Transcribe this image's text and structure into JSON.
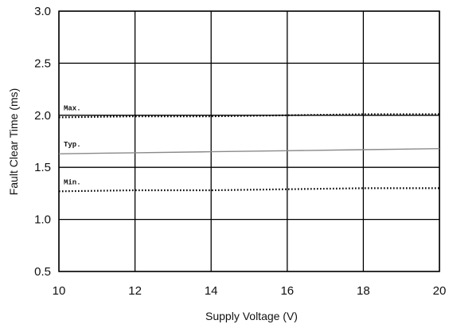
{
  "chart_data": {
    "type": "line",
    "title": "",
    "xlabel": "Supply Voltage (V)",
    "ylabel": "Fault Clear Time (ms)",
    "xlim": [
      10,
      20
    ],
    "ylim": [
      0.5,
      3.0
    ],
    "x_ticks": [
      "10",
      "12",
      "14",
      "16",
      "18",
      "20"
    ],
    "y_ticks": [
      "0.5",
      "1.0",
      "1.5",
      "2.0",
      "2.5",
      "3.0"
    ],
    "grid": true,
    "series": [
      {
        "name": "Max.",
        "style": "dotted",
        "color": "#000000",
        "x": [
          10,
          12,
          14,
          16,
          18,
          20
        ],
        "y": [
          1.98,
          1.99,
          1.99,
          2.0,
          2.01,
          2.01
        ]
      },
      {
        "name": "Typ.",
        "style": "solid",
        "color": "#8a8a8a",
        "x": [
          10,
          12,
          14,
          16,
          18,
          20
        ],
        "y": [
          1.63,
          1.64,
          1.65,
          1.66,
          1.67,
          1.68
        ]
      },
      {
        "name": "Min.",
        "style": "dotted",
        "color": "#000000",
        "x": [
          10,
          12,
          14,
          16,
          18,
          20
        ],
        "y": [
          1.27,
          1.28,
          1.28,
          1.29,
          1.3,
          1.3
        ]
      }
    ]
  }
}
